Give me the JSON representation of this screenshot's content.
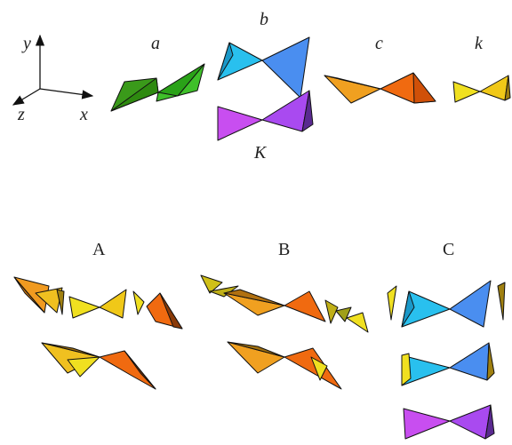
{
  "axes": {
    "y": "y",
    "z": "z",
    "x": "x"
  },
  "shapes": {
    "a": "a",
    "b": "b",
    "c": "c",
    "k": "k",
    "K": "K"
  },
  "groups": {
    "A": "A",
    "B": "B",
    "C": "C"
  }
}
